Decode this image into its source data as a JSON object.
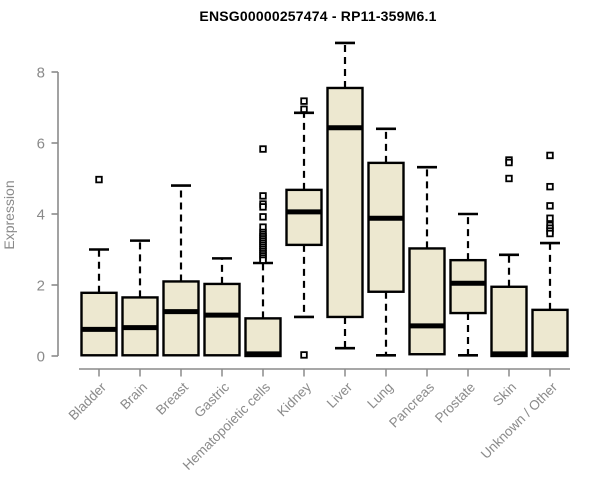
{
  "chart_data": {
    "type": "boxplot",
    "title": "ENSG00000257474 - RP11-359M6.1",
    "xlabel": "",
    "ylabel": "Expression",
    "ylim": [
      0,
      8.9
    ],
    "yticks": [
      0,
      2,
      4,
      6,
      8
    ],
    "grid": "off",
    "legend": "none",
    "categories": [
      "Bladder",
      "Brain",
      "Breast",
      "Gastric",
      "Hematopoietic cells",
      "Kidney",
      "Liver",
      "Lung",
      "Pancreas",
      "Prostate",
      "Skin",
      "Unknown / Other"
    ],
    "boxes": [
      {
        "category": "Bladder",
        "low": 0,
        "q1": 0.02,
        "median": 0.75,
        "q3": 1.78,
        "high": 3.0,
        "outliers": [
          4.97
        ]
      },
      {
        "category": "Brain",
        "low": 0,
        "q1": 0.02,
        "median": 0.8,
        "q3": 1.65,
        "high": 3.25,
        "outliers": []
      },
      {
        "category": "Breast",
        "low": 0,
        "q1": 0.02,
        "median": 1.25,
        "q3": 2.1,
        "high": 4.8,
        "outliers": []
      },
      {
        "category": "Gastric",
        "low": 0,
        "q1": 0.02,
        "median": 1.15,
        "q3": 2.03,
        "high": 2.75,
        "outliers": []
      },
      {
        "category": "Hematopoietic cells",
        "low": 0,
        "q1": 0.0,
        "median": 0.06,
        "q3": 1.06,
        "high": 2.62,
        "outliers": [
          5.83,
          4.51,
          4.28,
          4.2,
          3.92,
          3.63,
          3.48,
          3.42,
          3.36,
          3.3,
          3.24,
          3.18,
          3.12,
          3.06,
          3.0,
          2.94,
          2.88,
          2.82,
          2.76,
          2.7
        ]
      },
      {
        "category": "Kidney",
        "low": 1.1,
        "q1": 3.13,
        "median": 4.06,
        "q3": 4.68,
        "high": 6.85,
        "outliers": [
          7.18,
          6.95,
          0.03
        ]
      },
      {
        "category": "Liver",
        "low": 0.22,
        "q1": 1.1,
        "median": 6.43,
        "q3": 7.55,
        "high": 8.82,
        "outliers": []
      },
      {
        "category": "Lung",
        "low": 0.02,
        "q1": 1.81,
        "median": 3.88,
        "q3": 5.44,
        "high": 6.4,
        "outliers": []
      },
      {
        "category": "Pancreas",
        "low": 0.05,
        "q1": 0.05,
        "median": 0.85,
        "q3": 3.03,
        "high": 5.32,
        "outliers": []
      },
      {
        "category": "Prostate",
        "low": 0.02,
        "q1": 1.21,
        "median": 2.05,
        "q3": 2.7,
        "high": 4.0,
        "outliers": []
      },
      {
        "category": "Skin",
        "low": 0,
        "q1": 0.0,
        "median": 0.06,
        "q3": 1.95,
        "high": 2.85,
        "outliers": [
          5.52,
          5.45,
          5.0
        ]
      },
      {
        "category": "Unknown / Other",
        "low": 0,
        "q1": 0.0,
        "median": 0.06,
        "q3": 1.3,
        "high": 3.18,
        "outliers": [
          5.65,
          4.77,
          4.23,
          3.88,
          3.68,
          3.6,
          3.52,
          3.45
        ]
      }
    ],
    "colors": {
      "box_fill": "#EDE8D0",
      "box_stroke": "#000000",
      "median": "#000000",
      "whisker": "#000000",
      "axis": "#8a8a8a",
      "tick_text": "#8a8a8a",
      "title_text": "#000000"
    }
  }
}
